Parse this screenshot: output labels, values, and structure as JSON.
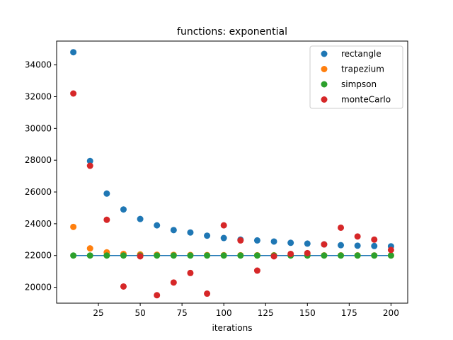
{
  "chart_data": {
    "type": "scatter",
    "title": "functions: exponential",
    "xlabel": "iterations",
    "ylabel": "",
    "xlim": [
      0,
      210
    ],
    "ylim": [
      19000,
      35500
    ],
    "x_ticks": [
      25,
      50,
      75,
      100,
      125,
      150,
      175,
      200
    ],
    "y_ticks": [
      20000,
      22000,
      24000,
      26000,
      28000,
      30000,
      32000,
      34000
    ],
    "legend_position": "top-right",
    "reference_line": {
      "x_start": 10,
      "x_end": 200,
      "y": 22000,
      "color": "#1f77b4"
    },
    "x": [
      10,
      20,
      30,
      40,
      50,
      60,
      70,
      80,
      90,
      100,
      110,
      120,
      130,
      140,
      150,
      160,
      170,
      180,
      190,
      200
    ],
    "series": [
      {
        "name": "rectangle",
        "color": "#1f77b4",
        "values": [
          34800,
          27950,
          25900,
          24900,
          24300,
          23900,
          23600,
          23450,
          23250,
          23100,
          23000,
          22950,
          22880,
          22800,
          22750,
          22700,
          22650,
          22620,
          22600,
          22580
        ]
      },
      {
        "name": "trapezium",
        "color": "#ff7f0e",
        "values": [
          23800,
          22450,
          22200,
          22100,
          22070,
          22050,
          22040,
          22030,
          22025,
          22020,
          22018,
          22016,
          22014,
          22012,
          22011,
          22010,
          22009,
          22008,
          22007,
          22006
        ]
      },
      {
        "name": "simpson",
        "color": "#2ca02c",
        "values": [
          22000,
          22000,
          22000,
          22000,
          22000,
          22000,
          22000,
          22000,
          22000,
          22000,
          22000,
          22000,
          22000,
          22000,
          22000,
          22000,
          22000,
          22000,
          22000,
          22000
        ]
      },
      {
        "name": "monteCarlo",
        "color": "#d62728",
        "values": [
          32200,
          27650,
          24250,
          20050,
          21950,
          19500,
          20300,
          20900,
          19600,
          23900,
          22950,
          21050,
          21950,
          22100,
          22150,
          22700,
          23750,
          23200,
          23000,
          22350
        ]
      }
    ]
  }
}
